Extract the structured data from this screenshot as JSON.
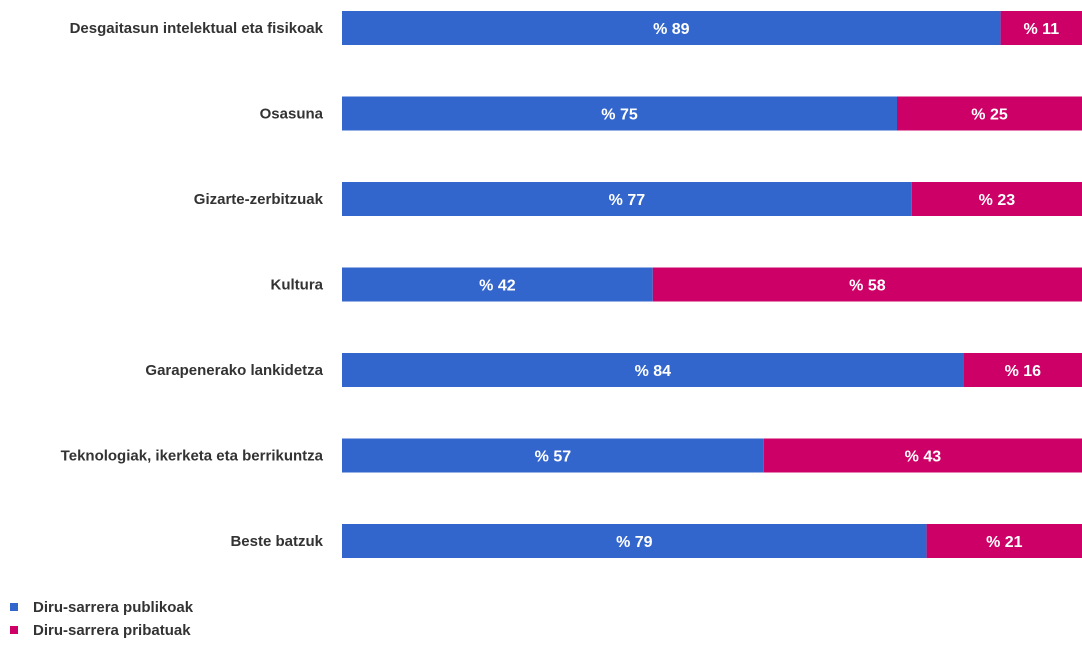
{
  "chart_data": {
    "type": "bar",
    "orientation": "horizontal",
    "stacked": true,
    "percent": true,
    "categories": [
      "Desgaitasun intelektual eta fisikoak",
      "Osasuna",
      "Gizarte-zerbitzuak",
      "Kultura",
      "Garapenerako lankidetza",
      "Teknologiak, ikerketa eta berrikuntza",
      "Beste batzuk"
    ],
    "series": [
      {
        "name": "Diru-sarrera publikoak",
        "color": "#3366cc",
        "values": [
          89,
          75,
          77,
          42,
          84,
          57,
          79
        ],
        "labels": [
          "% 89",
          "% 75",
          "% 77",
          "% 42",
          "% 84",
          "% 57",
          "% 79"
        ]
      },
      {
        "name": "Diru-sarrera pribatuak",
        "color": "#cc0066",
        "values": [
          11,
          25,
          23,
          58,
          16,
          43,
          21
        ],
        "labels": [
          "% 11",
          "% 25",
          "% 23",
          "% 58",
          "% 16",
          "% 43",
          "% 21"
        ]
      }
    ],
    "title": "",
    "xlabel": "",
    "ylabel": "",
    "xlim": [
      0,
      100
    ],
    "grid": false,
    "legend_position": "bottom-left"
  }
}
